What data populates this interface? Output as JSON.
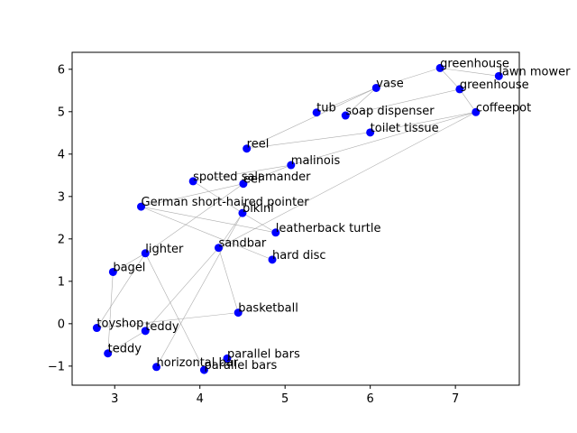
{
  "chart_data": {
    "type": "scatter",
    "title": "",
    "xlabel": "",
    "ylabel": "",
    "xlim": [
      2.5,
      7.75
    ],
    "ylim": [
      -1.45,
      6.4
    ],
    "xticks": [
      "3",
      "4",
      "5",
      "6",
      "7"
    ],
    "yticks": [
      "−1",
      "0",
      "1",
      "2",
      "3",
      "4",
      "5",
      "6"
    ],
    "grid": false,
    "point_color": "#0000ff",
    "edge_color": "#999999",
    "points": [
      {
        "label": "greenhouse",
        "x": 6.82,
        "y": 6.03
      },
      {
        "label": "lawn mower",
        "x": 7.51,
        "y": 5.84
      },
      {
        "label": "greenhouse",
        "x": 7.05,
        "y": 5.53
      },
      {
        "label": "vase",
        "x": 6.07,
        "y": 5.56
      },
      {
        "label": "tub",
        "x": 5.37,
        "y": 4.98
      },
      {
        "label": "soap dispenser",
        "x": 5.71,
        "y": 4.91
      },
      {
        "label": "coffeepot",
        "x": 7.24,
        "y": 4.99
      },
      {
        "label": "toilet tissue",
        "x": 6.0,
        "y": 4.51
      },
      {
        "label": "reel",
        "x": 4.55,
        "y": 4.13
      },
      {
        "label": "malinois",
        "x": 5.07,
        "y": 3.74
      },
      {
        "label": "spotted salamander",
        "x": 3.92,
        "y": 3.36
      },
      {
        "label": "eel",
        "x": 4.51,
        "y": 3.3
      },
      {
        "label": "German short-haired pointer",
        "x": 3.31,
        "y": 2.76
      },
      {
        "label": "bikini",
        "x": 4.5,
        "y": 2.61
      },
      {
        "label": "leatherback turtle",
        "x": 4.89,
        "y": 2.15
      },
      {
        "label": "lighter",
        "x": 3.36,
        "y": 1.66
      },
      {
        "label": "sandbar",
        "x": 4.22,
        "y": 1.79
      },
      {
        "label": "hard disc",
        "x": 4.85,
        "y": 1.51
      },
      {
        "label": "bagel",
        "x": 2.98,
        "y": 1.22
      },
      {
        "label": "basketball",
        "x": 4.45,
        "y": 0.26
      },
      {
        "label": "toyshop",
        "x": 2.79,
        "y": -0.1
      },
      {
        "label": "teddy",
        "x": 3.36,
        "y": -0.17
      },
      {
        "label": "teddy",
        "x": 2.92,
        "y": -0.7
      },
      {
        "label": "parallel bars",
        "x": 4.32,
        "y": -0.82
      },
      {
        "label": "horizontal bar",
        "x": 3.49,
        "y": -1.02
      },
      {
        "label": "parallel bars",
        "x": 4.05,
        "y": -1.09
      }
    ],
    "edges": [
      [
        0,
        1
      ],
      [
        0,
        2
      ],
      [
        0,
        3
      ],
      [
        3,
        4
      ],
      [
        3,
        5
      ],
      [
        2,
        5
      ],
      [
        2,
        6
      ],
      [
        6,
        7
      ],
      [
        7,
        8
      ],
      [
        6,
        9
      ],
      [
        9,
        10
      ],
      [
        9,
        11
      ],
      [
        11,
        12
      ],
      [
        12,
        14
      ],
      [
        12,
        17
      ],
      [
        6,
        16
      ],
      [
        11,
        15
      ],
      [
        10,
        13
      ],
      [
        13,
        14
      ],
      [
        13,
        16
      ],
      [
        16,
        19
      ],
      [
        16,
        21
      ],
      [
        15,
        18
      ],
      [
        15,
        20
      ],
      [
        18,
        22
      ],
      [
        19,
        20
      ],
      [
        15,
        25
      ],
      [
        13,
        24
      ],
      [
        3,
        8
      ],
      [
        21,
        22
      ]
    ]
  }
}
